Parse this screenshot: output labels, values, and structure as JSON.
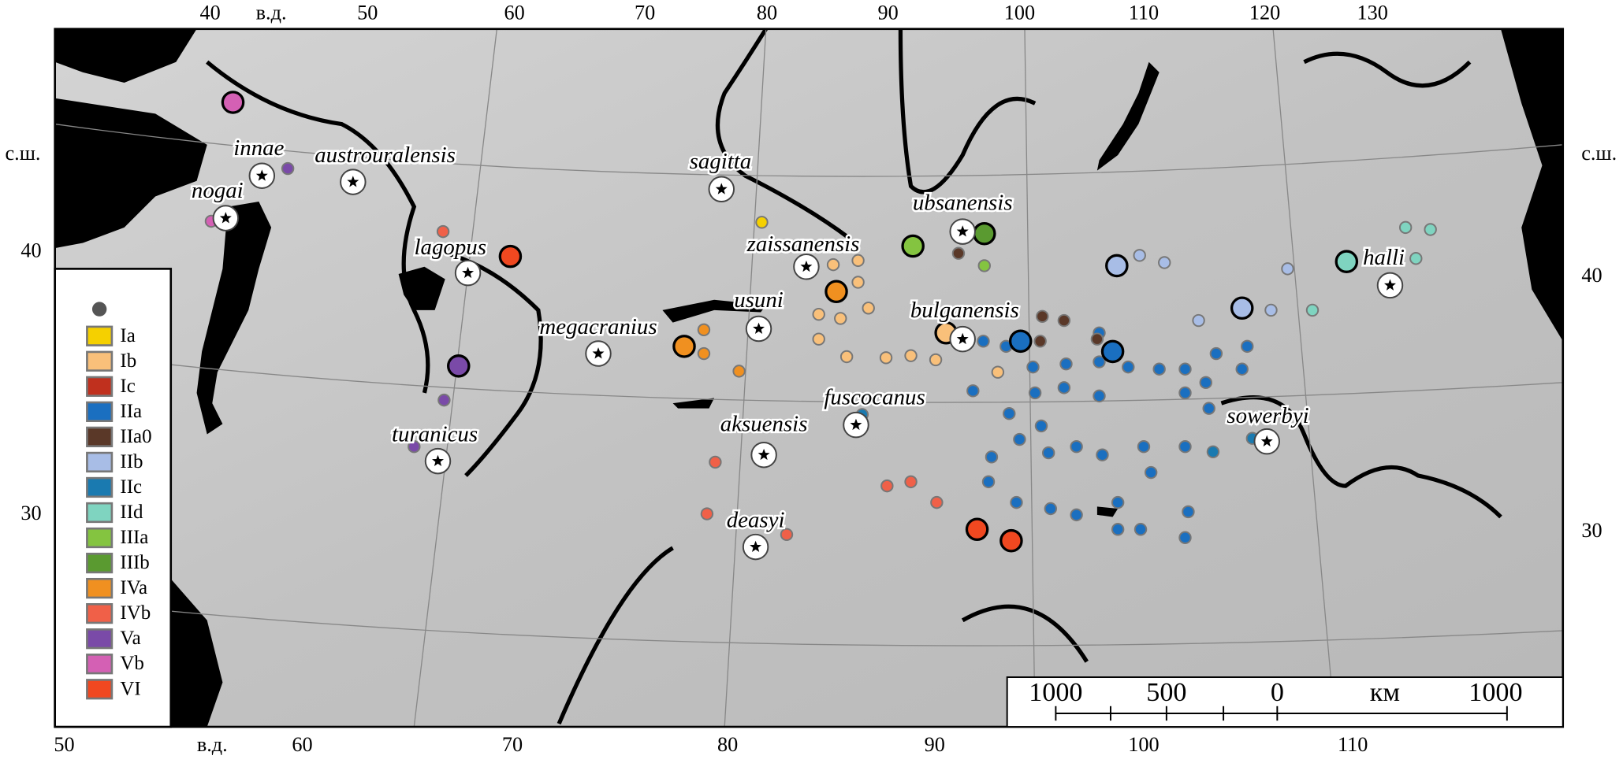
{
  "axes": {
    "top": [
      "40",
      "в.д.",
      "50",
      "60",
      "70",
      "80",
      "90",
      "100",
      "110",
      "120",
      "130"
    ],
    "left": [
      "с.ш.",
      "40",
      "30"
    ],
    "right": [
      "с.ш.",
      "40",
      "30"
    ],
    "bottom": [
      "50",
      "в.д.",
      "60",
      "70",
      "80",
      "90",
      "100",
      "110"
    ]
  },
  "legend": [
    {
      "label": "Ia",
      "color": "#f5d000"
    },
    {
      "label": "Ib",
      "color": "#f9c07a"
    },
    {
      "label": "Ic",
      "color": "#c0301e"
    },
    {
      "label": "IIa",
      "color": "#1a6fc0"
    },
    {
      "label": "IIa0",
      "color": "#5a3828"
    },
    {
      "label": "IIb",
      "color": "#a8bde6"
    },
    {
      "label": "IIc",
      "color": "#1a7ab0"
    },
    {
      "label": "IId",
      "color": "#7fd4c0"
    },
    {
      "label": "IIIa",
      "color": "#84c440"
    },
    {
      "label": "IIIb",
      "color": "#5a9a30"
    },
    {
      "label": "IVa",
      "color": "#f09020"
    },
    {
      "label": "IVb",
      "color": "#f06048"
    },
    {
      "label": "Va",
      "color": "#7a4aa8"
    },
    {
      "label": "Vb",
      "color": "#d460b4"
    },
    {
      "label": "VI",
      "color": "#f04820"
    }
  ],
  "taxa": [
    "innae",
    "austrouralensis",
    "nogai",
    "sagitta",
    "lagopus",
    "zaissanensis",
    "ubsanensis",
    "usuni",
    "megacranius",
    "bulganensis",
    "halli",
    "fuscocanus",
    "sowerbyi",
    "aksuensis",
    "turanicus",
    "deasyi"
  ],
  "scale_bar": {
    "labels": [
      "1000",
      "500",
      "0",
      "км",
      "1000"
    ]
  }
}
